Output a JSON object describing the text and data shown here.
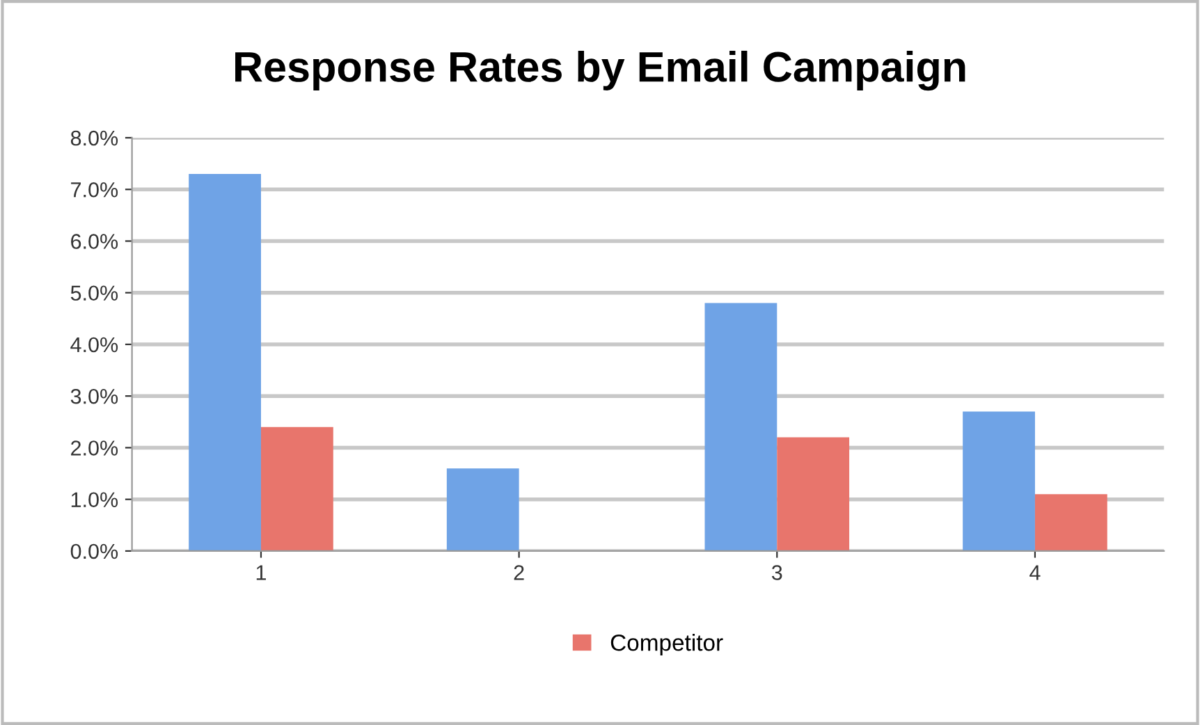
{
  "chart_data": {
    "type": "bar",
    "title": "Response Rates by Email Campaign",
    "categories": [
      "1",
      "2",
      "3",
      "4"
    ],
    "series": [
      {
        "color": "#6fa3e6",
        "values": [
          7.3,
          1.6,
          4.8,
          2.7
        ]
      },
      {
        "name": "Competitor",
        "color": "#e8756c",
        "values": [
          2.4,
          0,
          2.2,
          1.1
        ]
      }
    ],
    "ylim": [
      0,
      8
    ],
    "yticks": [
      {
        "value": 0,
        "label": "0.0%"
      },
      {
        "value": 1,
        "label": "1.0%"
      },
      {
        "value": 2,
        "label": "2.0%"
      },
      {
        "value": 3,
        "label": "3.0%"
      },
      {
        "value": 4,
        "label": "4.0%"
      },
      {
        "value": 5,
        "label": "5.0%"
      },
      {
        "value": 6,
        "label": "6.0%"
      },
      {
        "value": 7,
        "label": "7.0%"
      },
      {
        "value": 8,
        "label": "8.0%"
      }
    ],
    "grid": "y",
    "legend": "bottom"
  }
}
